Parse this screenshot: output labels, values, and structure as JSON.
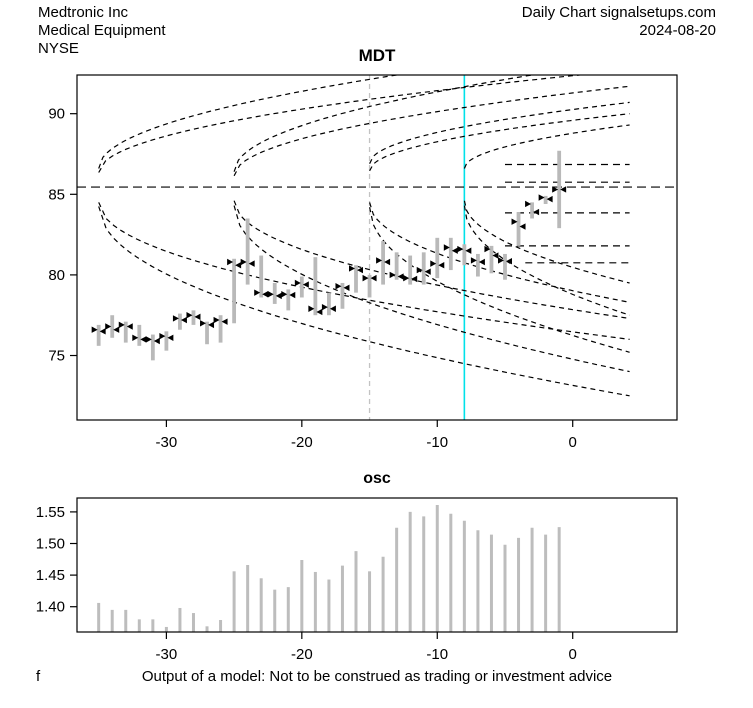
{
  "header": {
    "company": "Medtronic Inc",
    "industry": "Medical Equipment",
    "exchange": "NYSE",
    "source": "Daily Chart signalsetups.com",
    "date": "2024-08-20"
  },
  "footer": {
    "left": "f",
    "disclaimer": "Output of a model: Not to be construed as trading or investment advice"
  },
  "colors": {
    "price_bar": "#b9b9b9",
    "osc_bar": "#bdbdbd",
    "marker": "#000000",
    "cyan_vline": "#00e1e9",
    "gray_vline": "#c3c3c3",
    "curve": "#000000",
    "axis": "#000000"
  },
  "chart_data": [
    {
      "id": "price",
      "type": "bar",
      "title": "MDT",
      "xlabel": "",
      "ylabel": "",
      "xlim": [
        -36.6,
        7.7
      ],
      "ylim": [
        71.0,
        92.4
      ],
      "xticks": [
        -30,
        -20,
        -10,
        0
      ],
      "yticks": [
        75,
        80,
        85,
        90
      ],
      "grid": false,
      "mean_line": 85.45,
      "gray_dashed_vline_x": -15,
      "cyan_vline_x": -8,
      "level_segments": [
        {
          "value": 86.85,
          "x0": -5.0,
          "x1": 4.2
        },
        {
          "value": 85.75,
          "x0": -5.0,
          "x1": 4.2
        },
        {
          "value": 83.85,
          "x0": -5.0,
          "x1": 4.2
        },
        {
          "value": 81.8,
          "x0": -5.0,
          "x1": 4.2
        },
        {
          "value": 80.75,
          "x0": -3.5,
          "x1": 4.2
        }
      ],
      "upper_envelope_curves": [
        {
          "x0": -35,
          "v0": 86.6,
          "x1": -13,
          "v1": 92.4
        },
        {
          "x0": -35,
          "v0": 86.35,
          "x1": 0.5,
          "v1": 92.4
        },
        {
          "x0": -25,
          "v0": 86.4,
          "x1": -3,
          "v1": 92.4
        },
        {
          "x0": -25,
          "v0": 86.15,
          "x1": 4.2,
          "v1": 91.7
        },
        {
          "x0": -15,
          "v0": 86.9,
          "x1": 4.2,
          "v1": 90.7
        },
        {
          "x0": -15,
          "v0": 86.45,
          "x1": 4.2,
          "v1": 90.0
        },
        {
          "x0": -8,
          "v0": 86.6,
          "x1": 4.2,
          "v1": 89.3
        }
      ],
      "lower_envelope_curves": [
        {
          "x0": -35,
          "v0": 84.25,
          "x1": 4.2,
          "v1": 72.5
        },
        {
          "x0": -35,
          "v0": 84.5,
          "x1": 4.2,
          "v1": 76.0
        },
        {
          "x0": -25,
          "v0": 84.3,
          "x1": 4.2,
          "v1": 74.0
        },
        {
          "x0": -25,
          "v0": 84.6,
          "x1": 4.2,
          "v1": 77.3
        },
        {
          "x0": -15,
          "v0": 84.2,
          "x1": 4.2,
          "v1": 75.2
        },
        {
          "x0": -15,
          "v0": 84.5,
          "x1": 4.2,
          "v1": 78.3
        },
        {
          "x0": -8,
          "v0": 84.3,
          "x1": 4.2,
          "v1": 77.5
        },
        {
          "x0": -8,
          "v0": 84.6,
          "x1": 4.2,
          "v1": 79.5
        }
      ],
      "bars": [
        {
          "x": -35,
          "high": 76.9,
          "low": 75.6,
          "open": 76.6,
          "close": 76.5
        },
        {
          "x": -34,
          "high": 77.5,
          "low": 76.1,
          "open": 76.8,
          "close": 76.6
        },
        {
          "x": -33,
          "high": 77.1,
          "low": 75.8,
          "open": 76.9,
          "close": 76.8
        },
        {
          "x": -32,
          "high": 76.9,
          "low": 75.6,
          "open": 76.1,
          "close": 76.0
        },
        {
          "x": -31,
          "high": 76.3,
          "low": 74.7,
          "open": 76.0,
          "close": 75.9
        },
        {
          "x": -30,
          "high": 76.5,
          "low": 75.3,
          "open": 76.2,
          "close": 76.1
        },
        {
          "x": -29,
          "high": 77.6,
          "low": 76.6,
          "open": 77.3,
          "close": 77.2
        },
        {
          "x": -28,
          "high": 77.8,
          "low": 76.9,
          "open": 77.5,
          "close": 77.4
        },
        {
          "x": -27,
          "high": 77.1,
          "low": 75.7,
          "open": 77.0,
          "close": 76.9
        },
        {
          "x": -26,
          "high": 77.5,
          "low": 75.8,
          "open": 77.2,
          "close": 77.1
        },
        {
          "x": -25,
          "high": 81.0,
          "low": 77.0,
          "open": 80.8,
          "close": 80.6
        },
        {
          "x": -24,
          "high": 83.5,
          "low": 79.4,
          "open": 80.8,
          "close": 80.7
        },
        {
          "x": -23,
          "high": 81.2,
          "low": 78.6,
          "open": 78.9,
          "close": 78.8
        },
        {
          "x": -22,
          "high": 79.5,
          "low": 78.2,
          "open": 78.8,
          "close": 78.7
        },
        {
          "x": -21,
          "high": 79.1,
          "low": 77.8,
          "open": 78.8,
          "close": 78.75
        },
        {
          "x": -20,
          "high": 79.9,
          "low": 78.6,
          "open": 79.5,
          "close": 79.4
        },
        {
          "x": -19,
          "high": 81.1,
          "low": 77.5,
          "open": 77.9,
          "close": 77.7
        },
        {
          "x": -18,
          "high": 78.9,
          "low": 77.5,
          "open": 78.0,
          "close": 77.9
        },
        {
          "x": -17,
          "high": 79.5,
          "low": 77.9,
          "open": 79.3,
          "close": 79.2
        },
        {
          "x": -16,
          "high": 80.6,
          "low": 78.9,
          "open": 80.4,
          "close": 80.3
        },
        {
          "x": -15,
          "high": 80.0,
          "low": 78.6,
          "open": 79.8,
          "close": 79.8
        },
        {
          "x": -14,
          "high": 82.1,
          "low": 79.4,
          "open": 80.9,
          "close": 80.8
        },
        {
          "x": -13,
          "high": 81.4,
          "low": 79.7,
          "open": 80.0,
          "close": 79.9
        },
        {
          "x": -12,
          "high": 81.2,
          "low": 79.4,
          "open": 79.8,
          "close": 79.75
        },
        {
          "x": -11,
          "high": 81.4,
          "low": 79.4,
          "open": 80.3,
          "close": 80.2
        },
        {
          "x": -10,
          "high": 82.3,
          "low": 79.8,
          "open": 80.7,
          "close": 80.6
        },
        {
          "x": -9,
          "high": 82.3,
          "low": 80.3,
          "open": 81.7,
          "close": 81.5
        },
        {
          "x": -8,
          "high": 81.9,
          "low": 80.6,
          "open": 81.6,
          "close": 81.5
        },
        {
          "x": -7,
          "high": 81.3,
          "low": 79.9,
          "open": 80.9,
          "close": 80.8
        },
        {
          "x": -6,
          "high": 81.8,
          "low": 80.1,
          "open": 81.6,
          "close": 81.2
        },
        {
          "x": -5,
          "high": 81.3,
          "low": 79.7,
          "open": 80.9,
          "close": 80.85
        },
        {
          "x": -4,
          "high": 83.9,
          "low": 81.8,
          "open": 83.3,
          "close": 83.0
        },
        {
          "x": -3,
          "high": 84.5,
          "low": 83.5,
          "open": 84.4,
          "close": 83.9
        },
        {
          "x": -2,
          "high": 84.9,
          "low": 84.4,
          "open": 84.8,
          "close": 84.7
        },
        {
          "x": -1,
          "high": 87.7,
          "low": 82.9,
          "open": 85.3,
          "close": 85.3
        }
      ]
    },
    {
      "id": "osc",
      "type": "bar",
      "title": "osc",
      "xlabel": "",
      "ylabel": "",
      "xlim": [
        -36.6,
        7.7
      ],
      "ylim": [
        1.36,
        1.572
      ],
      "xticks": [
        -30,
        -20,
        -10,
        0
      ],
      "yticks": [
        1.4,
        1.45,
        1.5,
        1.55
      ],
      "grid": false,
      "x": [
        -35,
        -34,
        -33,
        -32,
        -31,
        -30,
        -29,
        -28,
        -27,
        -26,
        -25,
        -24,
        -23,
        -22,
        -21,
        -20,
        -19,
        -18,
        -17,
        -16,
        -15,
        -14,
        -13,
        -12,
        -11,
        -10,
        -9,
        -8,
        -7,
        -6,
        -5,
        -4,
        -3,
        -2,
        -1
      ],
      "values": [
        1.406,
        1.395,
        1.395,
        1.38,
        1.38,
        1.368,
        1.398,
        1.39,
        1.369,
        1.379,
        1.456,
        1.466,
        1.445,
        1.427,
        1.431,
        1.474,
        1.455,
        1.443,
        1.465,
        1.488,
        1.456,
        1.479,
        1.525,
        1.55,
        1.543,
        1.561,
        1.547,
        1.536,
        1.521,
        1.514,
        1.498,
        1.509,
        1.525,
        1.514,
        1.526
      ]
    }
  ]
}
